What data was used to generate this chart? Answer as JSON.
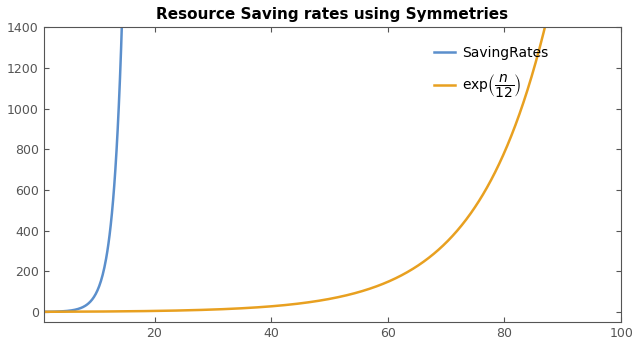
{
  "title": "Resource Saving rates using Symmetries",
  "xlim": [
    1,
    100
  ],
  "ylim": [
    -50,
    1400
  ],
  "xticks": [
    20,
    40,
    60,
    80,
    100
  ],
  "yticks": [
    0,
    200,
    400,
    600,
    800,
    1000,
    1200,
    1400
  ],
  "line_blue_color": "#5b8fcc",
  "line_orange_color": "#e8a020",
  "legend_label_blue": "SavingRates",
  "background_color": "#ffffff"
}
